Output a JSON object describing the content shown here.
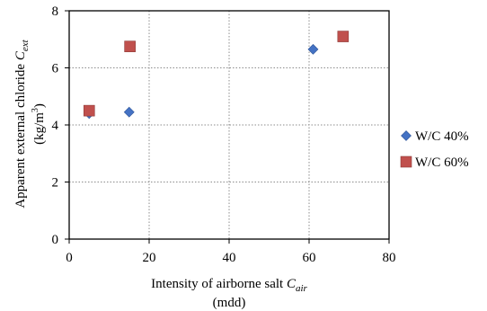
{
  "chart_data": {
    "type": "scatter",
    "xlabel_line1": "Intensity  of airborne salt ",
    "xlabel_var": "C",
    "xlabel_sub": "air",
    "xlabel_line2": "(mdd)",
    "ylabel_line1": "Apparent external chloride ",
    "ylabel_var": "C",
    "ylabel_sub": "ext",
    "ylabel_line2_pre": "(kg/m",
    "ylabel_line2_sup": "3",
    "ylabel_line2_post": ")",
    "xlim": [
      0,
      80
    ],
    "ylim": [
      0,
      8
    ],
    "xticks": [
      0,
      20,
      40,
      60,
      80
    ],
    "yticks": [
      0,
      2,
      4,
      6,
      8
    ],
    "grid": "dotted",
    "legend_position": "right",
    "series": [
      {
        "name": "W/C 40%",
        "marker": "diamond",
        "color": "#4472C4",
        "points": [
          [
            5,
            4.4
          ],
          [
            15,
            4.45
          ],
          [
            61,
            6.65
          ]
        ]
      },
      {
        "name": "W/C 60%",
        "marker": "square",
        "color": "#C0504D",
        "points": [
          [
            5,
            4.5
          ],
          [
            15.2,
            6.75
          ],
          [
            68.5,
            7.1
          ]
        ]
      }
    ]
  }
}
